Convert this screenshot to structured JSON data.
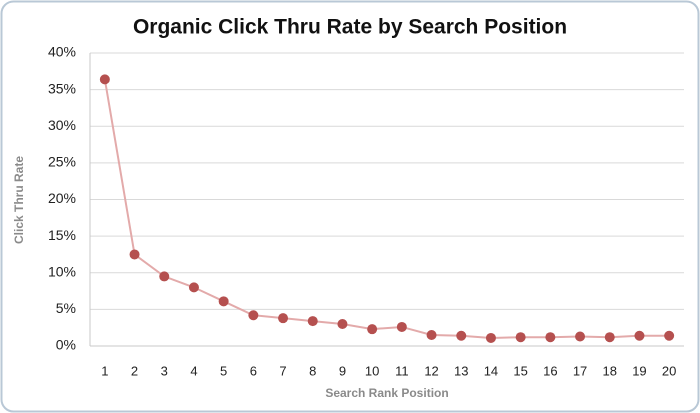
{
  "chart_data": {
    "type": "line",
    "title": "Organic Click Thru Rate by Search Position",
    "x_label": "Search Rank Position",
    "y_label": "Click Thru Rate",
    "categories": [
      "1",
      "2",
      "3",
      "4",
      "5",
      "6",
      "7",
      "8",
      "9",
      "10",
      "11",
      "12",
      "13",
      "14",
      "15",
      "16",
      "17",
      "18",
      "19",
      "20"
    ],
    "series": [
      {
        "color": "#b5504f",
        "line_color": "#e3aaaa",
        "values": [
          36.4,
          12.5,
          9.5,
          8.0,
          6.1,
          4.2,
          3.8,
          3.4,
          3.0,
          2.3,
          2.6,
          1.5,
          1.4,
          1.1,
          1.2,
          1.2,
          1.3,
          1.2,
          1.4,
          1.4
        ]
      }
    ],
    "ylim": [
      0,
      40
    ],
    "yticks": [
      {
        "value": 0,
        "label": "0%"
      },
      {
        "value": 5,
        "label": "5%"
      },
      {
        "value": 10,
        "label": "10%"
      },
      {
        "value": 15,
        "label": "15%"
      },
      {
        "value": 20,
        "label": "20%"
      },
      {
        "value": 25,
        "label": "25%"
      },
      {
        "value": 30,
        "label": "30%"
      },
      {
        "value": 35,
        "label": "35%"
      },
      {
        "value": 40,
        "label": "40%"
      }
    ],
    "grid": true
  }
}
